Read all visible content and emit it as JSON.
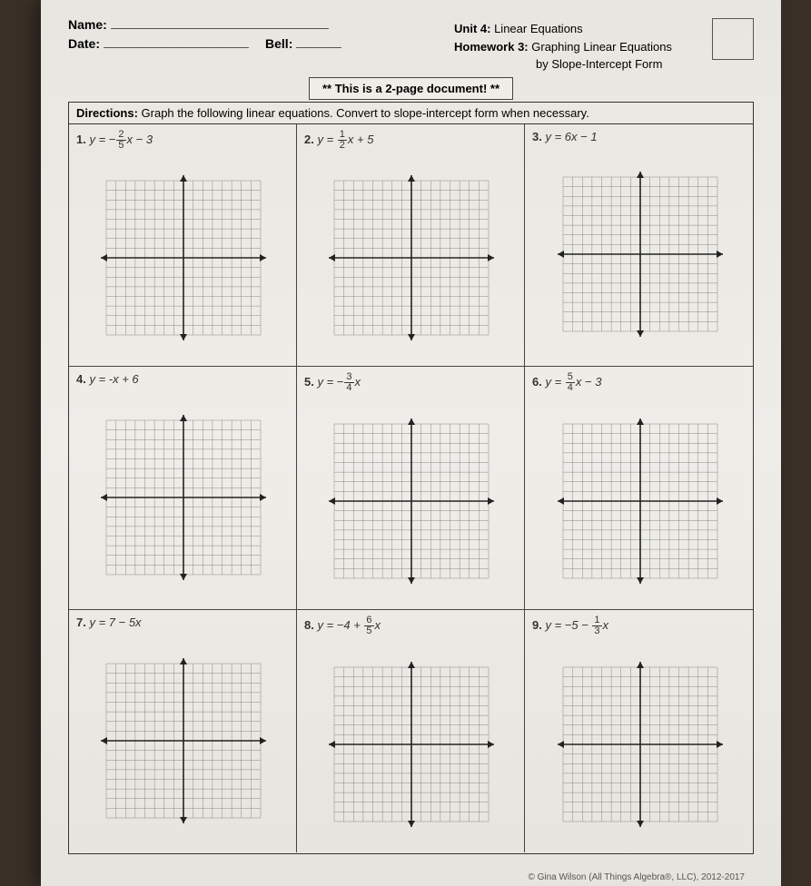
{
  "header": {
    "name_label": "Name:",
    "date_label": "Date:",
    "bell_label": "Bell:",
    "unit_label": "Unit 4:",
    "unit_title": "Linear Equations",
    "homework_label": "Homework 3:",
    "homework_title": "Graphing Linear Equations",
    "homework_sub": "by Slope-Intercept Form"
  },
  "notice": "** This is a 2-page document! **",
  "directions_label": "Directions:",
  "directions_text": "Graph the following linear equations.  Convert to slope-intercept form when necessary.",
  "problems": [
    {
      "num": "1.",
      "pre": "y = −",
      "frac_n": "2",
      "frac_d": "5",
      "post": "x − 3"
    },
    {
      "num": "2.",
      "pre": "y = ",
      "frac_n": "1",
      "frac_d": "2",
      "post": "x + 5"
    },
    {
      "num": "3.",
      "pre": "y = 6x − 1",
      "frac_n": "",
      "frac_d": "",
      "post": ""
    },
    {
      "num": "4.",
      "pre": "y = -x + 6",
      "frac_n": "",
      "frac_d": "",
      "post": ""
    },
    {
      "num": "5.",
      "pre": "y = −",
      "frac_n": "3",
      "frac_d": "4",
      "post": "x"
    },
    {
      "num": "6.",
      "pre": "y = ",
      "frac_n": "5",
      "frac_d": "4",
      "post": "x − 3"
    },
    {
      "num": "7.",
      "pre": "y = 7 − 5x",
      "frac_n": "",
      "frac_d": "",
      "post": ""
    },
    {
      "num": "8.",
      "pre": "y = −4 + ",
      "frac_n": "6",
      "frac_d": "5",
      "post": "x"
    },
    {
      "num": "9.",
      "pre": "y = −5 − ",
      "frac_n": "1",
      "frac_d": "3",
      "post": "x"
    }
  ],
  "grid": {
    "cells_per_side": 16,
    "svg_size": 200,
    "inner": 170,
    "gridline_color": "#888",
    "axis_color": "#222",
    "background_color": "#efede7"
  },
  "footer": "© Gina Wilson (All Things Algebra®, LLC), 2012-2017"
}
